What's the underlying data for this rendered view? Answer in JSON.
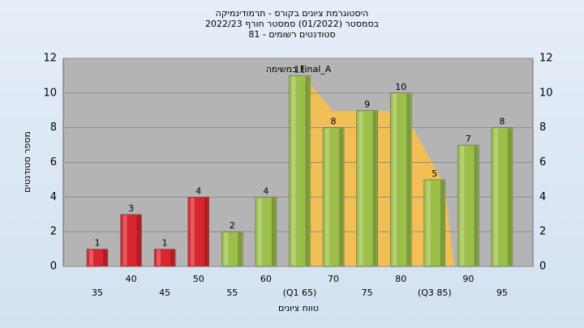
{
  "chart_data": {
    "type": "bar",
    "title": [
      "היסטוגרמת ציונים בקורס - תרמודינמיקה",
      "בסמסטר  (01/2022)  סמסטר חורף 2022/23",
      "סטודנטים רשומים - 81"
    ],
    "annotation": "במשימה Final_A",
    "xlabel": "טווח ציונים",
    "ylabel": "מספר סטודנטים",
    "categories": [
      "35",
      "40",
      "45",
      "50",
      "55",
      "60",
      "(Q1 65)",
      "70",
      "75",
      "80",
      "(Q3 85)",
      "90",
      "95"
    ],
    "values": [
      1,
      3,
      1,
      4,
      2,
      4,
      11,
      8,
      9,
      10,
      5,
      7,
      8
    ],
    "colors": [
      "#d8262e",
      "#d8262e",
      "#d8262e",
      "#d8262e",
      "#9cbf4a",
      "#9cbf4a",
      "#9cbf4a",
      "#9cbf4a",
      "#9cbf4a",
      "#9cbf4a",
      "#9cbf4a",
      "#9cbf4a",
      "#9cbf4a"
    ],
    "ylim": [
      0,
      12
    ],
    "yticks": [
      0,
      2,
      4,
      6,
      8,
      10,
      12
    ],
    "grid": true
  }
}
